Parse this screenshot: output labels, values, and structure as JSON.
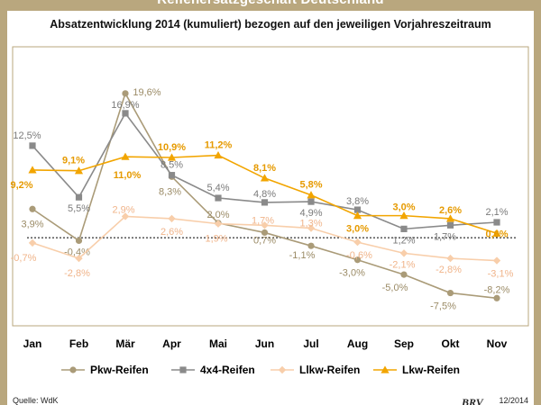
{
  "page": {
    "banner_title": "Reifenersatzgeschäft Deutschland"
  },
  "footer": {
    "source": "Quelle: WdK",
    "date": "12/2014",
    "logo_text": "BRV"
  },
  "colors": {
    "pkw": "#aa9b78",
    "x4": "#8a8a8a",
    "llkw": "#f8ceaa",
    "lkw": "#f2a500",
    "axis": "#000000",
    "frame": "#b9a77e"
  },
  "chart_data": {
    "type": "line",
    "title": "Absatzentwicklung 2014 (kumuliert) bezogen auf den jeweiligen Vorjahreszeitraum",
    "xlabel": "",
    "ylabel": "",
    "categories": [
      "Jan",
      "Feb",
      "Mär",
      "Apr",
      "Mai",
      "Jun",
      "Jul",
      "Aug",
      "Sep",
      "Okt",
      "Nov"
    ],
    "ylim": [
      -10,
      23
    ],
    "baseline": 0,
    "legend_position": "bottom",
    "series": [
      {
        "key": "pkw",
        "name": "Pkw-Reifen",
        "marker": "circle",
        "values": [
          3.9,
          -0.4,
          19.6,
          8.3,
          2.0,
          0.7,
          -1.1,
          -3.0,
          -5.0,
          -7.5,
          -8.2
        ],
        "labels": [
          "3,9%",
          "-0,4%",
          "19,6%",
          "8,3%",
          "2,0%",
          "0,7%",
          "-1,1%",
          "-3,0%",
          "-5,0%",
          "-7,5%",
          "-8,2%"
        ]
      },
      {
        "key": "x4",
        "name": "4x4-Reifen",
        "marker": "square",
        "values": [
          12.5,
          5.5,
          16.9,
          8.5,
          5.4,
          4.8,
          4.9,
          3.8,
          1.2,
          1.7,
          2.1
        ],
        "labels": [
          "12,5%",
          "5,5%",
          "16,9%",
          "8,5%",
          "5,4%",
          "4,8%",
          "4,9%",
          "3,8%",
          "1,2%",
          "1,7%",
          "2,1%"
        ]
      },
      {
        "key": "llkw",
        "name": "Llkw-Reifen",
        "marker": "diamond",
        "values": [
          -0.7,
          -2.8,
          2.9,
          2.6,
          1.9,
          1.7,
          1.3,
          -0.6,
          -2.1,
          -2.8,
          -3.1
        ],
        "labels": [
          "-0,7%",
          "-2,8%",
          "2,9%",
          "2,6%",
          "1,9%",
          "1,7%",
          "1,3%",
          "-0,6%",
          "-2,1%",
          "-2,8%",
          "-3,1%"
        ]
      },
      {
        "key": "lkw",
        "name": "Lkw-Reifen",
        "marker": "triangle",
        "values": [
          9.2,
          9.1,
          11.0,
          10.9,
          11.2,
          8.1,
          5.8,
          3.0,
          3.0,
          2.6,
          0.6
        ],
        "labels": [
          "9,2%",
          "9,1%",
          "11,0%",
          "10,9%",
          "11,2%",
          "8,1%",
          "5,8%",
          "3,0%",
          "3,0%",
          "2,6%",
          "0,6%"
        ]
      }
    ]
  }
}
